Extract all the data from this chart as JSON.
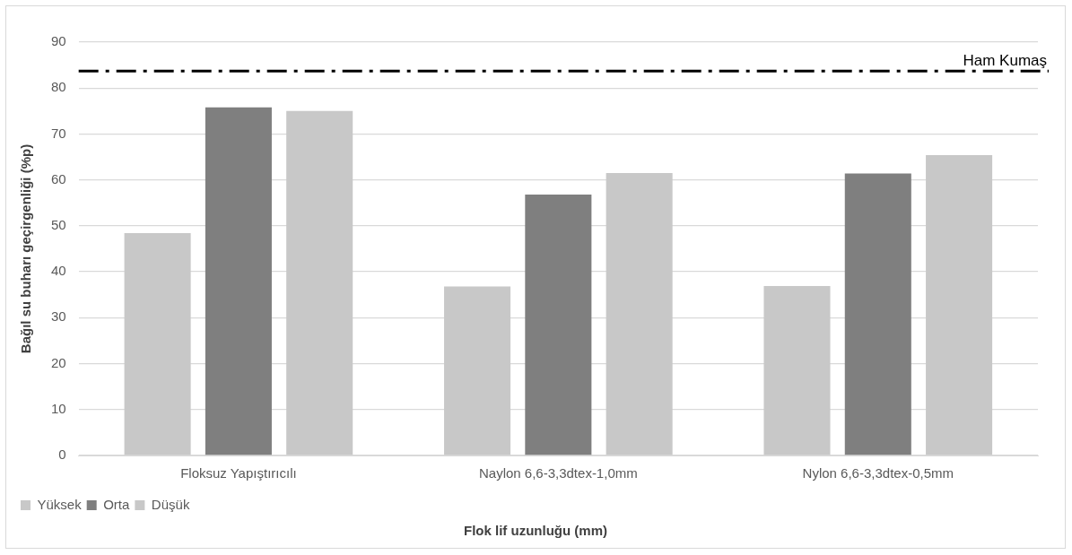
{
  "chart_data": {
    "type": "bar",
    "xlabel": "Flok lif uzunluğu (mm)",
    "ylabel": "Bağıl su buharı geçirgenliği (%p)",
    "categories": [
      "Floksuz Yapıştırıcılı",
      "Naylon 6,6-3,3dtex-1,0mm",
      "Nylon 6,6-3,3dtex-0,5mm"
    ],
    "series": [
      {
        "name": "Yüksek",
        "color": "#c8c8c8",
        "values": [
          48.4,
          36.8,
          36.9
        ]
      },
      {
        "name": "Orta",
        "color": "#7f7f7f",
        "values": [
          75.8,
          56.8,
          61.4
        ]
      },
      {
        "name": "Düşük",
        "color": "#c8c8c8",
        "values": [
          75.0,
          61.5,
          65.4
        ]
      }
    ],
    "ylim": [
      0,
      90
    ],
    "yticks": [
      0,
      10,
      20,
      30,
      40,
      50,
      60,
      70,
      80,
      90
    ],
    "grid": "y",
    "legend": "bottom left",
    "ref_lines": [
      {
        "axis": "y",
        "value": 83.7,
        "label": "Ham Kumaş",
        "color": "#000000",
        "line_style": "dashed"
      }
    ]
  }
}
